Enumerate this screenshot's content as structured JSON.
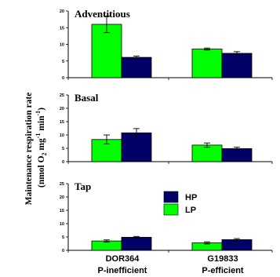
{
  "chart_data": {
    "type": "bar",
    "ylabel_line1": "Maintenance respiration rate",
    "ylabel_line2_prefix": "(nmol O",
    "ylabel_line2_sub": "2",
    "ylabel_line2_mid": " mg",
    "ylabel_line2_sup1": "-1",
    "ylabel_line2_min": " min",
    "ylabel_line2_sup2": "-1",
    "ylabel_line2_end": ")",
    "categories": [
      {
        "line1": "DOR364",
        "line2": "P-inefficient"
      },
      {
        "line1": "G19833",
        "line2": "P-efficient"
      }
    ],
    "legend": [
      {
        "label": "HP",
        "color": "#000066"
      },
      {
        "label": "LP",
        "color": "#00ff00"
      }
    ],
    "colors": {
      "LP": "#00ff00",
      "HP": "#000066"
    },
    "panels": [
      {
        "title": "Adventitious",
        "ylim": [
          0,
          20
        ],
        "ticks": [
          "0",
          "5",
          "10",
          "15",
          "20"
        ],
        "series": [
          {
            "name": "LP",
            "values": [
              16.0,
              8.6
            ],
            "errors": [
              2.5,
              0.3
            ]
          },
          {
            "name": "HP",
            "values": [
              6.1,
              7.3
            ],
            "errors": [
              0.4,
              0.5
            ]
          }
        ]
      },
      {
        "title": "Basal",
        "ylim": [
          0,
          25
        ],
        "ticks": [
          "0",
          "5",
          "10",
          "15",
          "20",
          "25"
        ],
        "series": [
          {
            "name": "LP",
            "values": [
              8.3,
              6.2
            ],
            "errors": [
              1.7,
              0.8
            ]
          },
          {
            "name": "HP",
            "values": [
              10.8,
              4.9
            ],
            "errors": [
              1.6,
              0.5
            ]
          }
        ]
      },
      {
        "title": "Tap",
        "ylim": [
          0,
          25
        ],
        "ticks": [
          "0",
          "5",
          "10",
          "15",
          "20",
          "25"
        ],
        "series": [
          {
            "name": "LP",
            "values": [
              3.5,
              2.8
            ],
            "errors": [
              0.4,
              0.4
            ]
          },
          {
            "name": "HP",
            "values": [
              4.9,
              4.0
            ],
            "errors": [
              0.3,
              0.4
            ]
          }
        ]
      }
    ]
  }
}
